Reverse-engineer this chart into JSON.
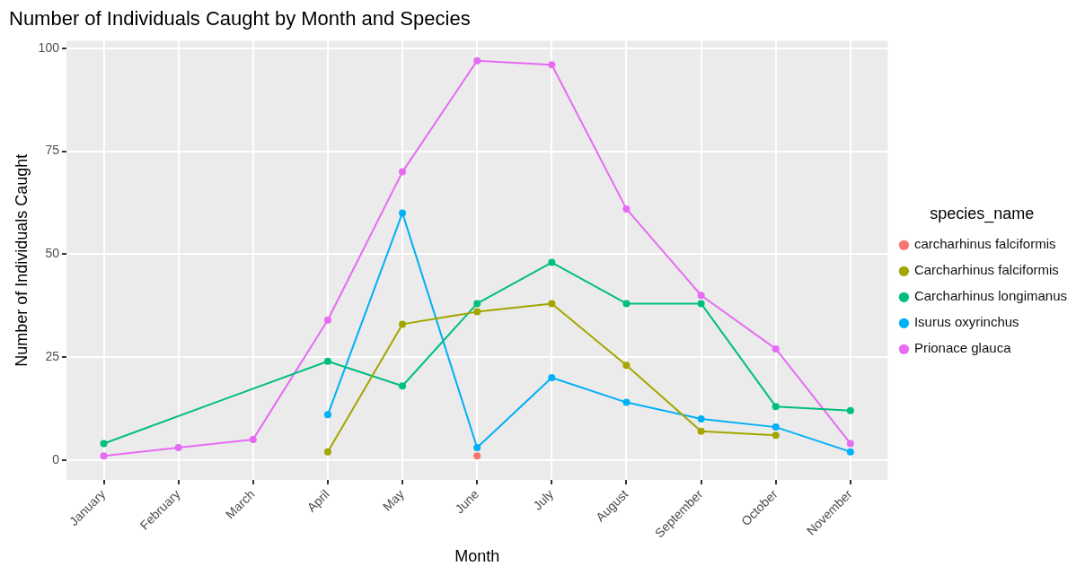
{
  "chart_data": {
    "type": "line",
    "title": "Number of Individuals Caught by Month and Species",
    "xlabel": "Month",
    "ylabel": "Number of Individuals Caught",
    "legend_title": "species_name",
    "categories": [
      "January",
      "February",
      "March",
      "April",
      "May",
      "June",
      "July",
      "August",
      "September",
      "October",
      "November"
    ],
    "series": [
      {
        "name": "carcharhinus falciformis",
        "color": "#f8766d",
        "values": [
          null,
          null,
          null,
          null,
          null,
          1,
          null,
          null,
          null,
          null,
          null
        ]
      },
      {
        "name": "Carcharhinus falciformis",
        "color": "#a3a500",
        "values": [
          null,
          null,
          null,
          2,
          33,
          36,
          38,
          23,
          7,
          6,
          null
        ]
      },
      {
        "name": "Carcharhinus longimanus",
        "color": "#00bf7d",
        "values": [
          4,
          null,
          null,
          24,
          18,
          38,
          48,
          38,
          38,
          13,
          12
        ]
      },
      {
        "name": "Isurus oxyrinchus",
        "color": "#00b0f6",
        "values": [
          null,
          null,
          null,
          11,
          60,
          3,
          20,
          14,
          10,
          8,
          2
        ]
      },
      {
        "name": "Prionace glauca",
        "color": "#e76bf3",
        "values": [
          1,
          3,
          5,
          34,
          70,
          97,
          96,
          61,
          40,
          27,
          4
        ]
      }
    ],
    "ylim": [
      -4.85,
      101.85
    ],
    "yticks": [
      0,
      25,
      50,
      75,
      100
    ],
    "grid": true,
    "legend": "right",
    "marker": "circle"
  }
}
